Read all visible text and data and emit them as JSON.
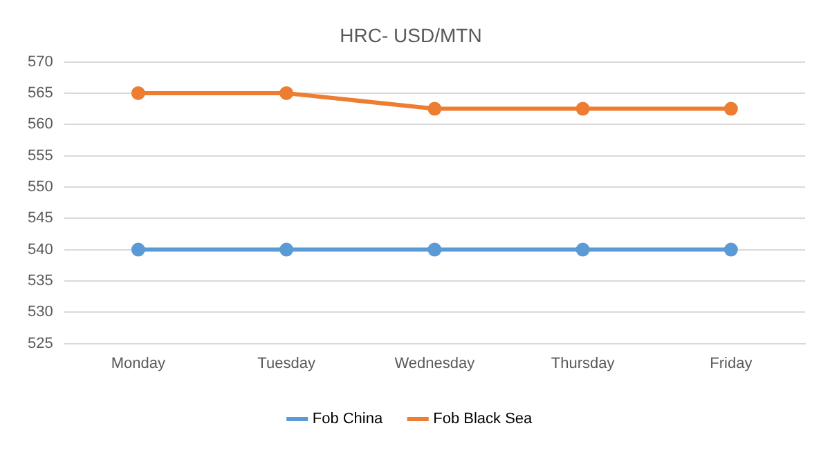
{
  "chart_data": {
    "type": "line",
    "title": "HRC- USD/MTN",
    "categories": [
      "Monday",
      "Tuesday",
      "Wednesday",
      "Thursday",
      "Friday"
    ],
    "series": [
      {
        "name": "Fob China",
        "color": "#5b9bd5",
        "values": [
          540,
          540,
          540,
          540,
          540
        ]
      },
      {
        "name": "Fob Black Sea",
        "color": "#ed7d31",
        "values": [
          565,
          565,
          562.5,
          562.5,
          562.5
        ]
      }
    ],
    "ylim": [
      525,
      570
    ],
    "yticks": [
      525,
      530,
      535,
      540,
      545,
      550,
      555,
      560,
      565,
      570
    ],
    "grid": "y",
    "legend": "bottom",
    "marker": "circle",
    "line_style": "solid"
  }
}
